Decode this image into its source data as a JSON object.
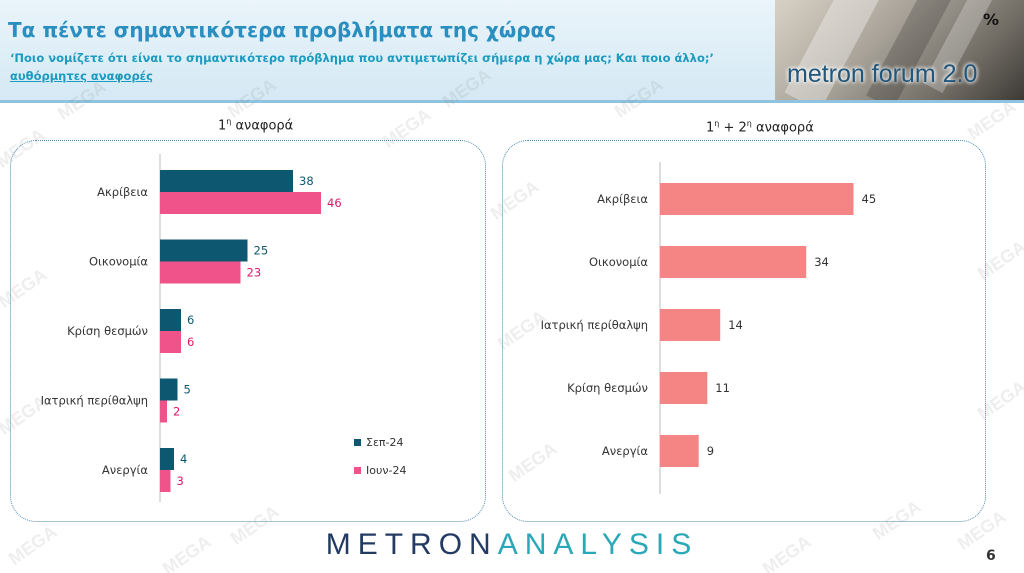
{
  "header": {
    "title": "Τα πέντε σημαντικότερα προβλήματα της χώρας",
    "question": "‘Ποιο νομίζετε ότι είναι το σημαντικότερο πρόβλημα που αντιμετωπίζει σήμερα η χώρα μας; Και ποιο άλλο;’",
    "note": "αυθόρμητες αναφορές"
  },
  "brand": {
    "name": "metron forum 2.0",
    "symbol": "%"
  },
  "watermark": "MEGA",
  "footer": {
    "logo_a": "METRON",
    "logo_b": "ANALYSIS",
    "page": "6"
  },
  "colors": {
    "sep24": "#0d5870",
    "jun24": "#f0538a",
    "total": "#f58585",
    "label_sep24": "#0d5870",
    "label_jun24": "#d91a6a"
  },
  "chart_data": [
    {
      "type": "bar",
      "orientation": "horizontal",
      "title_main": "1",
      "title_sup": "η",
      "title_rest": " αναφορά",
      "categories": [
        "Ακρίβεια",
        "Οικονομία",
        "Κρίση θεσμών",
        "Ιατρική περίθαλψη",
        "Ανεργία"
      ],
      "series": [
        {
          "name": "Σεπ-24",
          "values": [
            38,
            25,
            6,
            5,
            4
          ]
        },
        {
          "name": "Ιουν-24",
          "values": [
            46,
            23,
            6,
            2,
            3
          ]
        }
      ],
      "legend": "bottom-right",
      "xlim": [
        0,
        80
      ]
    },
    {
      "type": "bar",
      "orientation": "horizontal",
      "title_main": "1",
      "title_sup": "η",
      "title_mid": " + 2",
      "title_sup2": "η",
      "title_rest": " αναφορά",
      "categories": [
        "Ακρίβεια",
        "Οικονομία",
        "Ιατρική περίθαλψη",
        "Κρίση θεσμών",
        "Ανεργία"
      ],
      "series": [
        {
          "values": [
            45,
            34,
            14,
            11,
            9
          ]
        }
      ],
      "xlim": [
        0,
        80
      ]
    }
  ]
}
